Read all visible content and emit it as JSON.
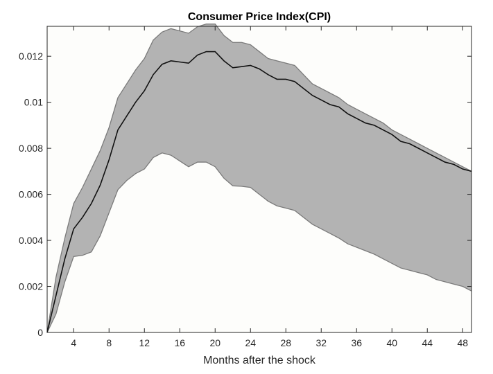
{
  "chart_data": {
    "type": "area",
    "title": "Consumer Price Index(CPI)",
    "xlabel": "Months after the shock",
    "ylabel": "",
    "xlim": [
      1,
      49
    ],
    "ylim": [
      0,
      0.0133
    ],
    "x_ticks": [
      4,
      8,
      12,
      16,
      20,
      24,
      28,
      32,
      36,
      40,
      44,
      48
    ],
    "x_tick_labels": [
      "4",
      "8",
      "12",
      "16",
      "20",
      "24",
      "28",
      "32",
      "36",
      "40",
      "44",
      "48"
    ],
    "y_ticks": [
      0,
      0.002,
      0.004,
      0.006,
      0.008,
      0.01,
      0.012
    ],
    "y_tick_labels": [
      "0",
      "0.002",
      "0.004",
      "0.006",
      "0.008",
      "0.01",
      "0.012"
    ],
    "grid": false,
    "legend": "none",
    "x": [
      1,
      2,
      3,
      4,
      5,
      6,
      7,
      8,
      9,
      10,
      11,
      12,
      13,
      14,
      15,
      16,
      17,
      18,
      19,
      20,
      21,
      22,
      23,
      24,
      25,
      26,
      27,
      28,
      29,
      30,
      31,
      32,
      33,
      34,
      35,
      36,
      37,
      38,
      39,
      40,
      41,
      42,
      43,
      44,
      45,
      46,
      47,
      48,
      49
    ],
    "series": [
      {
        "role": "lower_band",
        "values": [
          0,
          0.0008,
          0.0022,
          0.0033,
          0.00335,
          0.0035,
          0.0042,
          0.0052,
          0.0062,
          0.0066,
          0.0069,
          0.0071,
          0.0076,
          0.0078,
          0.0077,
          0.00745,
          0.0072,
          0.0074,
          0.0074,
          0.0072,
          0.0067,
          0.00637,
          0.00635,
          0.0063,
          0.006,
          0.0057,
          0.0055,
          0.0054,
          0.0053,
          0.005,
          0.0047,
          0.0045,
          0.0043,
          0.0041,
          0.00385,
          0.0037,
          0.00355,
          0.0034,
          0.0032,
          0.003,
          0.0028,
          0.0027,
          0.0026,
          0.0025,
          0.0023,
          0.0022,
          0.0021,
          0.002,
          0.0018
        ]
      },
      {
        "role": "median",
        "values": [
          0,
          0.0016,
          0.0032,
          0.0045,
          0.005,
          0.0056,
          0.0064,
          0.0075,
          0.0088,
          0.0094,
          0.01,
          0.0105,
          0.0112,
          0.01165,
          0.0118,
          0.01175,
          0.0117,
          0.01205,
          0.0122,
          0.0122,
          0.0118,
          0.0115,
          0.01155,
          0.0116,
          0.01145,
          0.0112,
          0.011,
          0.011,
          0.0109,
          0.0106,
          0.0103,
          0.0101,
          0.0099,
          0.0098,
          0.0095,
          0.0093,
          0.0091,
          0.009,
          0.0088,
          0.0086,
          0.0083,
          0.0082,
          0.008,
          0.0078,
          0.0076,
          0.0074,
          0.0073,
          0.0071,
          0.007
        ]
      },
      {
        "role": "upper_band",
        "values": [
          0,
          0.0024,
          0.0041,
          0.0056,
          0.0063,
          0.0071,
          0.0079,
          0.0089,
          0.0102,
          0.0108,
          0.0114,
          0.0119,
          0.0127,
          0.01305,
          0.0132,
          0.0131,
          0.013,
          0.01328,
          0.0134,
          0.0134,
          0.0129,
          0.0126,
          0.0126,
          0.0125,
          0.0122,
          0.0119,
          0.0118,
          0.0117,
          0.0116,
          0.0112,
          0.0108,
          0.0106,
          0.0104,
          0.0102,
          0.0099,
          0.0097,
          0.0095,
          0.0093,
          0.0091,
          0.0088,
          0.0086,
          0.0084,
          0.0082,
          0.008,
          0.0078,
          0.0076,
          0.0074,
          0.0072,
          0.007
        ]
      }
    ],
    "colors": {
      "band_fill": "#b3b3b3",
      "band_edge": "#7a7a7a",
      "median_line": "#111111",
      "plot_background": "#fdfdfb",
      "axis": "#262626"
    }
  }
}
